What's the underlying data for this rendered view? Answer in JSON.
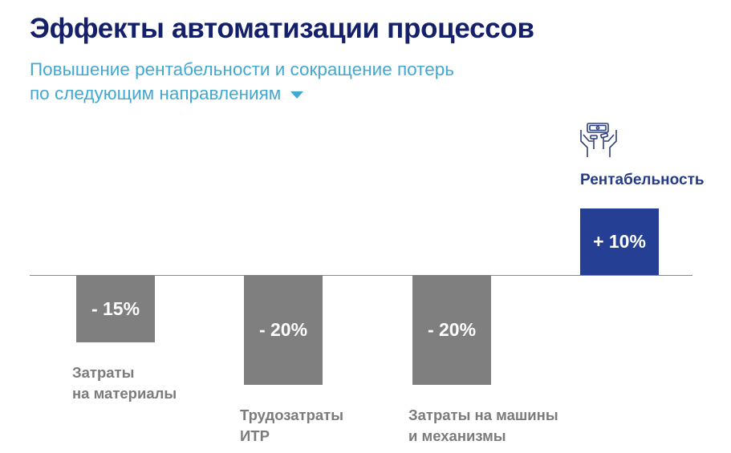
{
  "title": "Эффекты автоматизации процессов",
  "subtitle": {
    "line1": "Повышение рентабельности и сокращение потерь",
    "line2": "по следующим направлениям",
    "icon": "triangle-down-icon"
  },
  "highlight": {
    "label": "Рентабельность",
    "icon": "money-in-hands-icon"
  },
  "colors": {
    "title": "#14206a",
    "subtitle": "#41a9d1",
    "negative": "#7f7f7f",
    "positive": "#243f94"
  },
  "chart_data": {
    "type": "bar",
    "categories": [
      "Затраты\nна материалы",
      "Трудозатраты\nИТР",
      "Затраты на машины\nи механизмы",
      "Рентабельность"
    ],
    "values": [
      -15,
      -20,
      -20,
      10
    ],
    "data_labels": [
      "- 15%",
      "- 20%",
      "- 20%",
      "+ 10%"
    ],
    "unit": "%",
    "grid": false
  }
}
